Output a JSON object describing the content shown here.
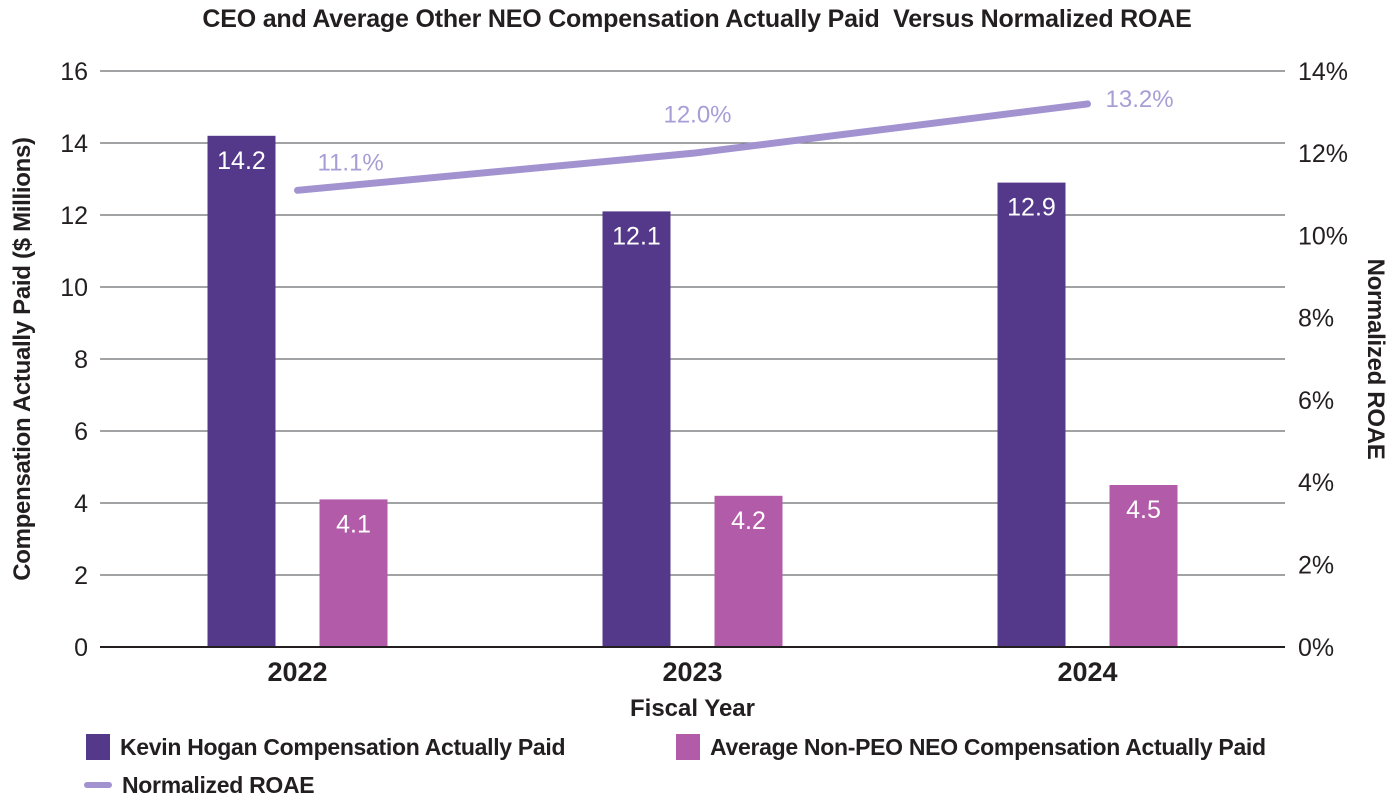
{
  "title": "CEO and Average Other NEO Compensation Actually Paid  Versus Normalized ROAE",
  "chart_data": {
    "type": "combo-bar-line",
    "categories": [
      "2022",
      "2023",
      "2024"
    ],
    "series": [
      {
        "name": "Kevin Hogan Compensation Actually Paid",
        "type": "bar",
        "axis": "left",
        "color": "#54398B",
        "values": [
          14.2,
          12.1,
          12.9
        ],
        "data_labels": [
          "14.2",
          "12.1",
          "12.9"
        ]
      },
      {
        "name": "Average Non-PEO NEO Compensation Actually Paid",
        "type": "bar",
        "axis": "left",
        "color": "#B25CA9",
        "values": [
          4.1,
          4.2,
          4.5
        ],
        "data_labels": [
          "4.1",
          "4.2",
          "4.5"
        ]
      },
      {
        "name": "Normalized ROAE",
        "type": "line",
        "axis": "right",
        "color": "#A293D0",
        "label_color": "#A79ED6",
        "values": [
          11.1,
          12.0,
          13.2
        ],
        "data_labels": [
          "11.1%",
          "12.0%",
          "13.2%"
        ]
      }
    ],
    "xlabel": "Fiscal Year",
    "left_axis": {
      "title": "Compensation Actually Paid ($ Millions)",
      "min": 0,
      "max": 16,
      "tick_step": 2,
      "tick_labels": [
        "0",
        "2",
        "4",
        "6",
        "8",
        "10",
        "12",
        "14",
        "16"
      ]
    },
    "right_axis": {
      "title": "Normalized ROAE",
      "min": 0,
      "max": 14,
      "tick_step": 2,
      "tick_labels": [
        "0%",
        "2%",
        "4%",
        "6%",
        "8%",
        "10%",
        "12%",
        "14%"
      ]
    },
    "grid": true,
    "legend_position": "bottom-left"
  },
  "legend": {
    "items": [
      {
        "label": "Kevin Hogan Compensation Actually Paid",
        "swatch": "square",
        "color": "#54398B"
      },
      {
        "label": "Average Non-PEO NEO Compensation Actually Paid",
        "swatch": "square",
        "color": "#B25CA9"
      },
      {
        "label": "Normalized ROAE",
        "swatch": "line",
        "color": "#A293D0"
      }
    ]
  },
  "colors": {
    "background": "#FFFFFF",
    "text": "#231F20",
    "gridline": "#6B6C6E",
    "axis_line": "#231F20",
    "bar_label": "#FFFFFF"
  }
}
